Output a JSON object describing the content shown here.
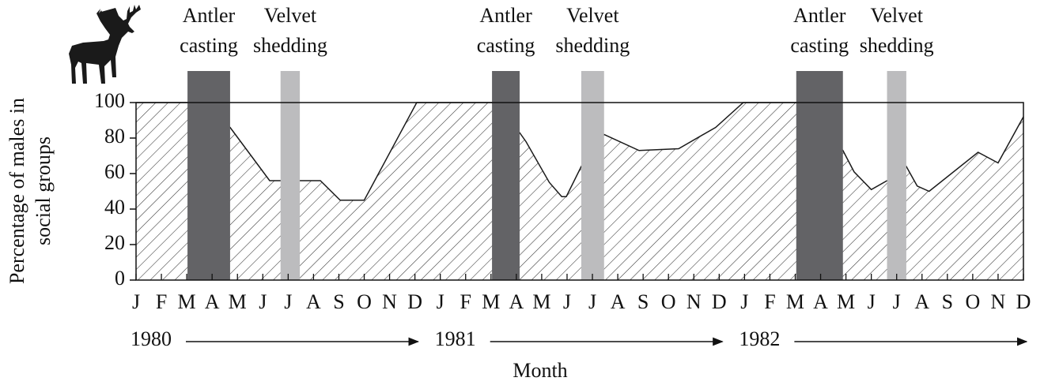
{
  "chart_data": {
    "type": "area",
    "ylabel": [
      "Percentage of males in",
      "social groups"
    ],
    "xlabel": "Month",
    "years": [
      "1980",
      "1981",
      "1982"
    ],
    "xlim": [
      0,
      35
    ],
    "ylim": [
      0,
      100
    ],
    "yticks": [
      0,
      20,
      40,
      60,
      80,
      100
    ],
    "xticks": [
      {
        "value": 0,
        "label": "J"
      },
      {
        "value": 1,
        "label": "F"
      },
      {
        "value": 2,
        "label": "M"
      },
      {
        "value": 3,
        "label": "A"
      },
      {
        "value": 4,
        "label": "M"
      },
      {
        "value": 5,
        "label": "J"
      },
      {
        "value": 6,
        "label": "J"
      },
      {
        "value": 7,
        "label": "A"
      },
      {
        "value": 8,
        "label": "S"
      },
      {
        "value": 9,
        "label": "O"
      },
      {
        "value": 10,
        "label": "N"
      },
      {
        "value": 11,
        "label": "D"
      },
      {
        "value": 12,
        "label": "J"
      },
      {
        "value": 13,
        "label": "F"
      },
      {
        "value": 14,
        "label": "M"
      },
      {
        "value": 15,
        "label": "A"
      },
      {
        "value": 16,
        "label": "M"
      },
      {
        "value": 17,
        "label": "J"
      },
      {
        "value": 18,
        "label": "J"
      },
      {
        "value": 19,
        "label": "A"
      },
      {
        "value": 20,
        "label": "S"
      },
      {
        "value": 21,
        "label": "O"
      },
      {
        "value": 22,
        "label": "N"
      },
      {
        "value": 23,
        "label": "D"
      },
      {
        "value": 24,
        "label": "J"
      },
      {
        "value": 25,
        "label": "F"
      },
      {
        "value": 26,
        "label": "M"
      },
      {
        "value": 27,
        "label": "A"
      },
      {
        "value": 28,
        "label": "M"
      },
      {
        "value": 29,
        "label": "J"
      },
      {
        "value": 30,
        "label": "J"
      },
      {
        "value": 31,
        "label": "A"
      },
      {
        "value": 32,
        "label": "S"
      },
      {
        "value": 33,
        "label": "O"
      },
      {
        "value": 34,
        "label": "N"
      },
      {
        "value": 35,
        "label": "D"
      }
    ],
    "x": [
      0,
      2.03,
      3.71,
      5.27,
      5.7,
      6.46,
      7.27,
      8.05,
      9.0,
      11.07,
      14.04,
      15.13,
      15.38,
      16.3,
      16.79,
      16.97,
      17.56,
      18.46,
      19.84,
      21.4,
      22.86,
      23.95,
      26.04,
      27.88,
      28.32,
      29.0,
      29.62,
      30.38,
      30.81,
      31.28,
      33.21,
      34.0,
      35
    ],
    "values": [
      100,
      100,
      86,
      56,
      56,
      56,
      56,
      45,
      45,
      100,
      100,
      83,
      78,
      55,
      47,
      47,
      64,
      82,
      73,
      74,
      86,
      100,
      100,
      73,
      61,
      51,
      56,
      64,
      53,
      50,
      72,
      66,
      92
    ],
    "line_color": "#1a1a1a",
    "hatch_color": "#333333",
    "periods": [
      {
        "lines": [
          "Antler",
          "casting"
        ],
        "x_start": 2.03,
        "x_end": 3.71,
        "color": "#636366"
      },
      {
        "lines": [
          "Velvet",
          "shedding"
        ],
        "x_start": 5.7,
        "x_end": 6.46,
        "color": "#bcbcbe"
      },
      {
        "lines": [
          "Antler",
          "casting"
        ],
        "x_start": 14.04,
        "x_end": 15.13,
        "color": "#636366"
      },
      {
        "lines": [
          "Velvet",
          "shedding"
        ],
        "x_start": 17.56,
        "x_end": 18.46,
        "color": "#bcbcbe"
      },
      {
        "lines": [
          "Antler",
          "casting"
        ],
        "x_start": 26.04,
        "x_end": 27.88,
        "color": "#636366"
      },
      {
        "lines": [
          "Velvet",
          "shedding"
        ],
        "x_start": 29.62,
        "x_end": 30.38,
        "color": "#bcbcbe"
      }
    ]
  }
}
